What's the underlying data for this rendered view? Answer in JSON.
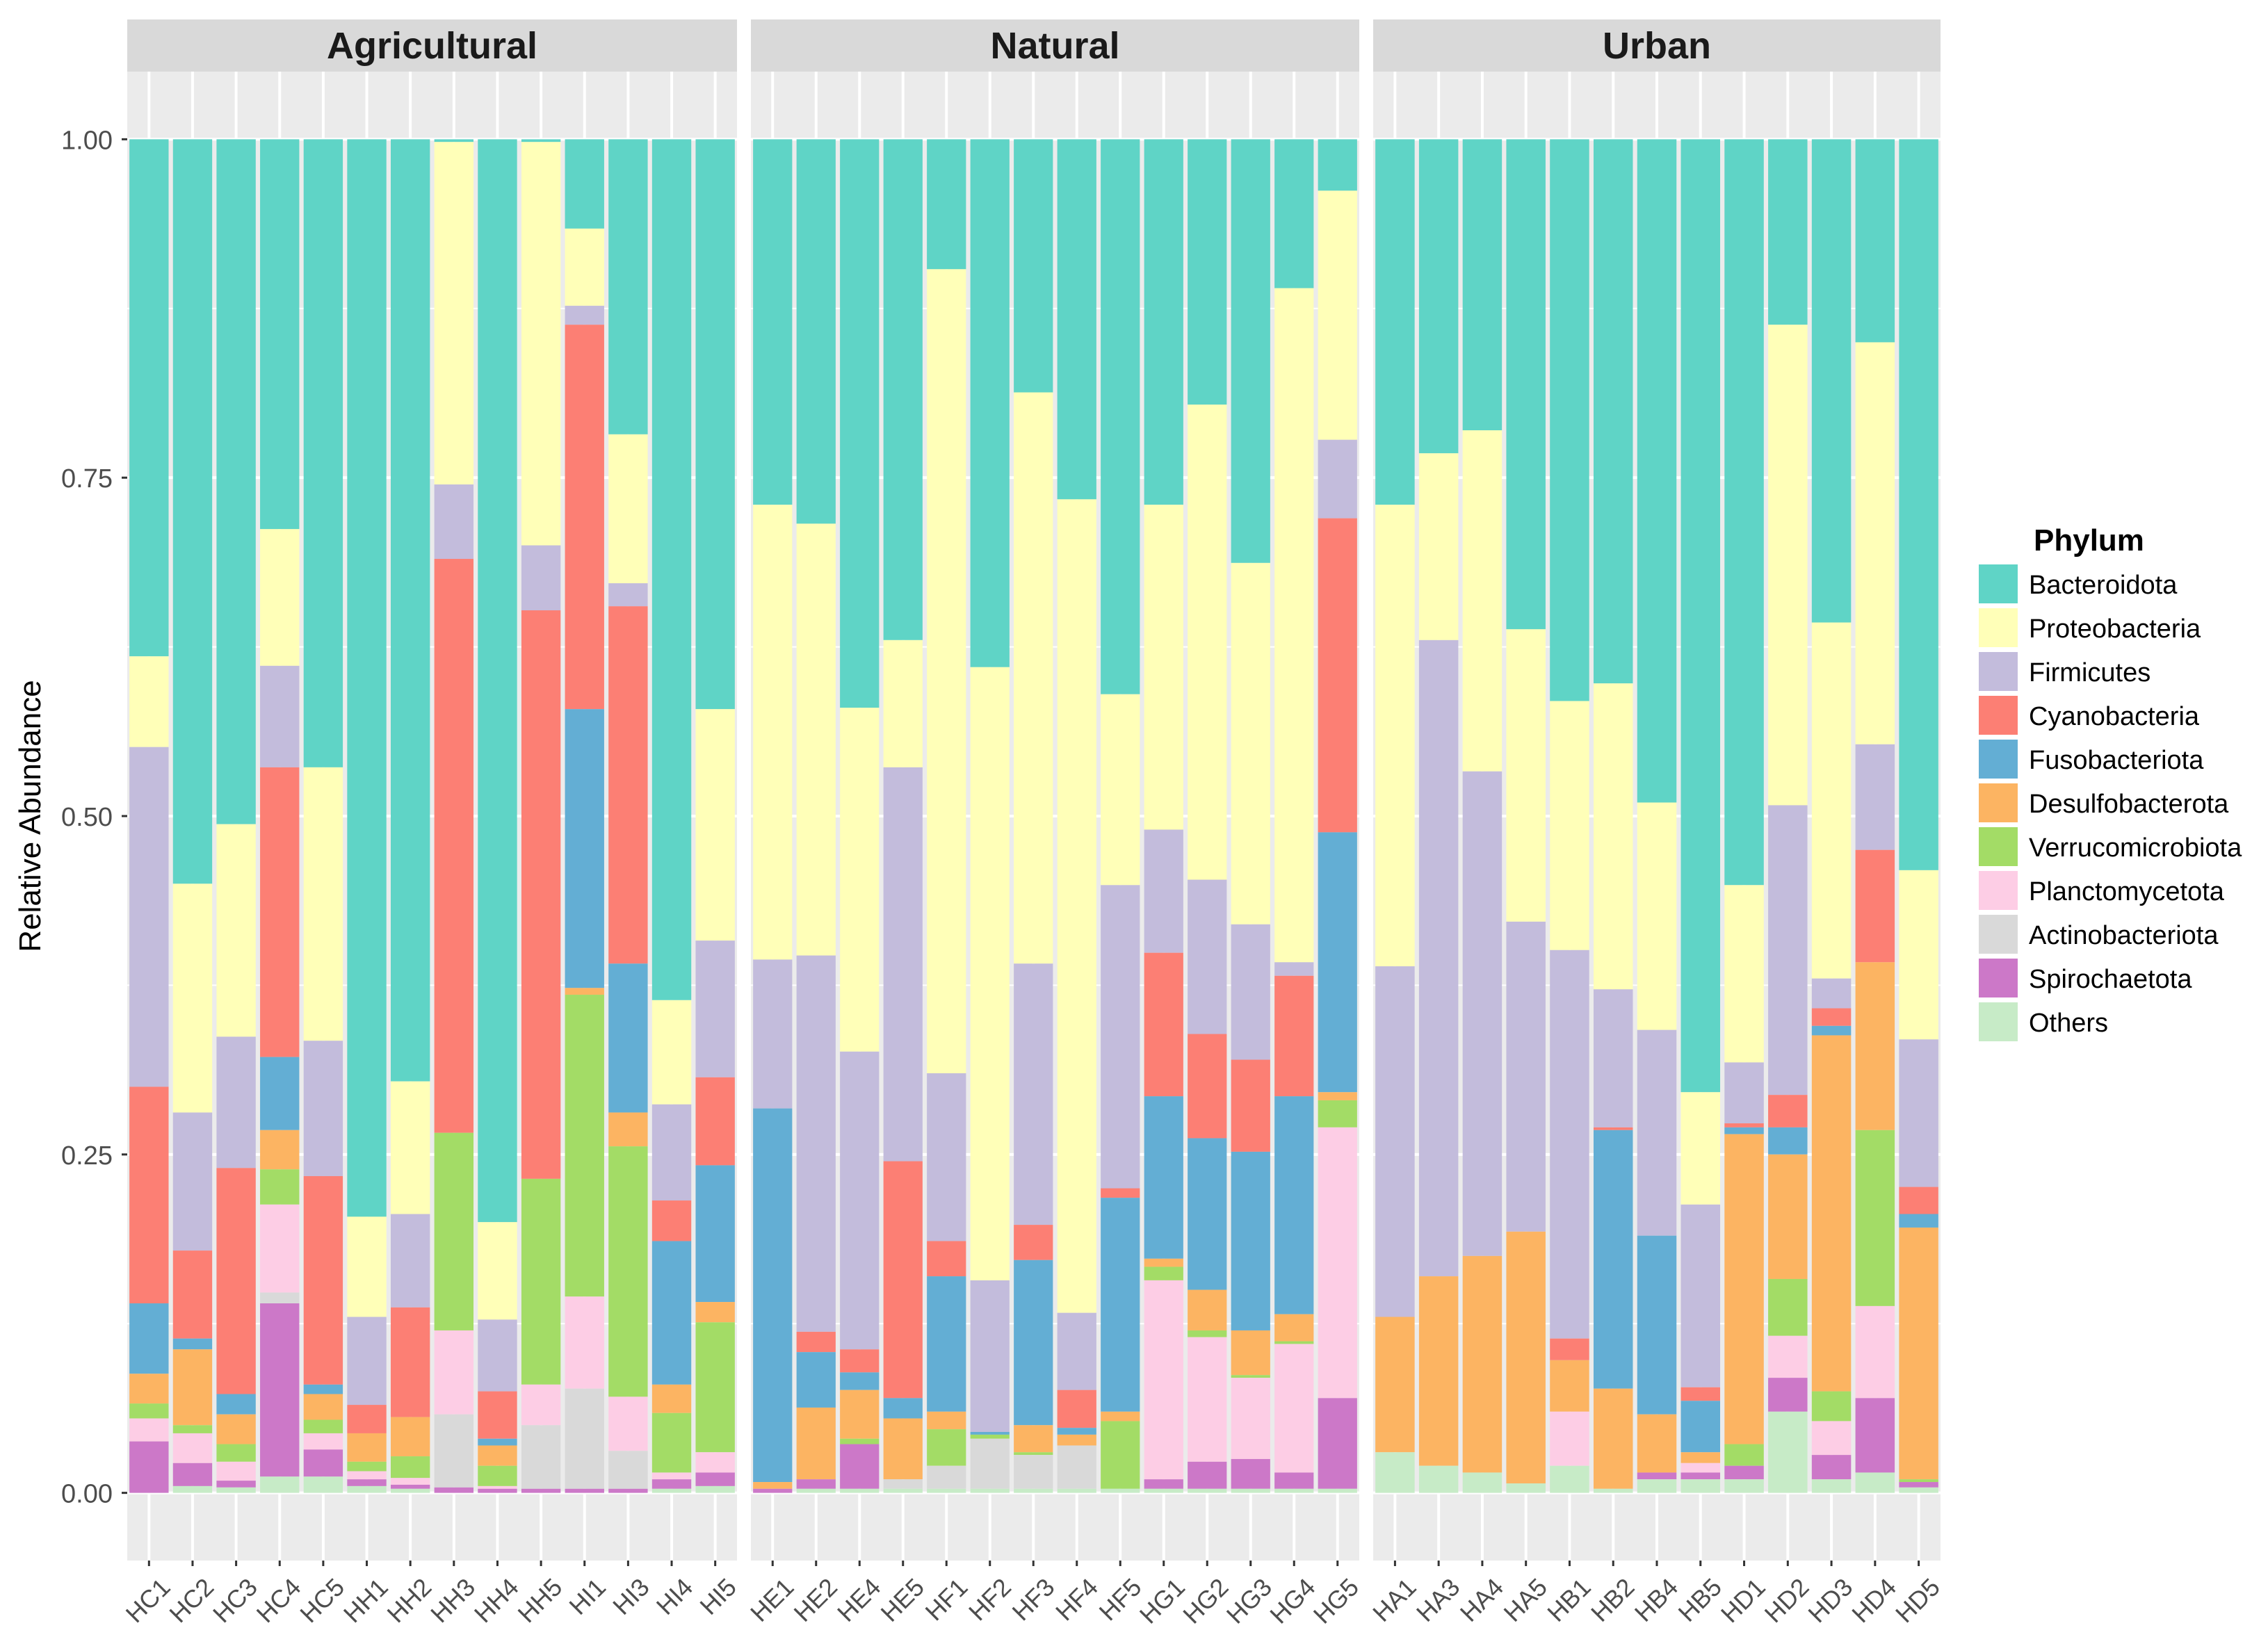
{
  "chart_data": {
    "type": "bar",
    "stacked": true,
    "ylabel": "Relative Abundance",
    "ylim": [
      -0.05,
      1.05
    ],
    "yticks": [
      "0.00",
      "0.25",
      "0.50",
      "0.75",
      "1.00"
    ],
    "legend": {
      "title": "Phylum",
      "position": "right",
      "entries": [
        {
          "name": "Bacteroidota",
          "color": "#5fd4c6"
        },
        {
          "name": "Proteobacteria",
          "color": "#ffffb8"
        },
        {
          "name": "Firmicutes",
          "color": "#c3bcdc"
        },
        {
          "name": "Cyanobacteria",
          "color": "#fc7f74"
        },
        {
          "name": "Fusobacteriota",
          "color": "#63aed4"
        },
        {
          "name": "Desulfobacterota",
          "color": "#fcb462"
        },
        {
          "name": "Verrucomicrobiota",
          "color": "#a3dc66"
        },
        {
          "name": "Planctomycetota",
          "color": "#fdcde5"
        },
        {
          "name": "Actinobacteriota",
          "color": "#d9d9d9"
        },
        {
          "name": "Spirochaetota",
          "color": "#cc78c8"
        },
        {
          "name": "Others",
          "color": "#c7ebc7"
        }
      ]
    },
    "panels": [
      {
        "title": "Agricultural",
        "samples": [
          {
            "label": "HC1",
            "tops": [
              1,
              0.618,
              0.551,
              0.3,
              0.14,
              0.088,
              0.066,
              0.055,
              0.038,
              0.038,
              0
            ]
          },
          {
            "label": "HC2",
            "tops": [
              1,
              0.45,
              0.281,
              0.179,
              0.114,
              0.106,
              0.05,
              0.044,
              0.022,
              0.022,
              0.005
            ]
          },
          {
            "label": "HC3",
            "tops": [
              1,
              0.494,
              0.337,
              0.24,
              0.073,
              0.058,
              0.036,
              0.023,
              0.009,
              0.009,
              0.004
            ]
          },
          {
            "label": "HC4",
            "tops": [
              1,
              0.712,
              0.611,
              0.536,
              0.322,
              0.268,
              0.239,
              0.213,
              0.148,
              0.14,
              0.012
            ]
          },
          {
            "label": "HC5",
            "tops": [
              1,
              0.536,
              0.334,
              0.234,
              0.08,
              0.073,
              0.054,
              0.044,
              0.032,
              0.032,
              0.012
            ]
          },
          {
            "label": "HH1",
            "tops": [
              1,
              0.204,
              0.13,
              0.065,
              0.044,
              0.044,
              0.023,
              0.016,
              0.01,
              0.01,
              0.005
            ]
          },
          {
            "label": "HH2",
            "tops": [
              1,
              0.304,
              0.206,
              0.137,
              0.056,
              0.056,
              0.027,
              0.011,
              0.006,
              0.006,
              0.003
            ]
          },
          {
            "label": "HH3",
            "tops": [
              1,
              0.998,
              0.745,
              0.69,
              0.266,
              0.266,
              0.266,
              0.12,
              0.058,
              0.004,
              0
            ]
          },
          {
            "label": "HH4",
            "tops": [
              1,
              0.2,
              0.128,
              0.075,
              0.04,
              0.035,
              0.02,
              0.005,
              0.003,
              0.003,
              0
            ]
          },
          {
            "label": "HH5",
            "tops": [
              1,
              0.998,
              0.7,
              0.652,
              0.232,
              0.232,
              0.232,
              0.08,
              0.05,
              0.003,
              0
            ]
          },
          {
            "label": "HI1",
            "tops": [
              1,
              0.934,
              0.877,
              0.863,
              0.579,
              0.373,
              0.368,
              0.145,
              0.077,
              0.003,
              0
            ]
          },
          {
            "label": "HI3",
            "tops": [
              1,
              0.782,
              0.672,
              0.655,
              0.391,
              0.281,
              0.256,
              0.071,
              0.031,
              0.003,
              0
            ]
          },
          {
            "label": "HI4",
            "tops": [
              1,
              0.364,
              0.287,
              0.216,
              0.186,
              0.08,
              0.059,
              0.015,
              0.01,
              0.01,
              0.003
            ]
          },
          {
            "label": "HI5",
            "tops": [
              1,
              0.579,
              0.408,
              0.307,
              0.242,
              0.141,
              0.126,
              0.03,
              0.015,
              0.015,
              0.005
            ]
          }
        ]
      },
      {
        "title": "Natural",
        "samples": [
          {
            "label": "HE1",
            "tops": [
              1,
              0.73,
              0.394,
              0.284,
              0.284,
              0.008,
              0.003,
              0.003,
              0.003,
              0.003,
              0
            ]
          },
          {
            "label": "HE2",
            "tops": [
              1,
              0.716,
              0.397,
              0.119,
              0.104,
              0.063,
              0.01,
              0.01,
              0.01,
              0.01,
              0.003
            ]
          },
          {
            "label": "HE4",
            "tops": [
              1,
              0.58,
              0.326,
              0.106,
              0.089,
              0.076,
              0.04,
              0.036,
              0.036,
              0.036,
              0.003
            ]
          },
          {
            "label": "HE5",
            "tops": [
              1,
              0.63,
              0.536,
              0.245,
              0.07,
              0.055,
              0.01,
              0.01,
              0.01,
              0.003,
              0.003
            ]
          },
          {
            "label": "HF1",
            "tops": [
              1,
              0.904,
              0.31,
              0.186,
              0.16,
              0.06,
              0.047,
              0.02,
              0.02,
              0.003,
              0.003
            ]
          },
          {
            "label": "HF2",
            "tops": [
              1,
              0.61,
              0.157,
              0.045,
              0.045,
              0.043,
              0.043,
              0.04,
              0.04,
              0.003,
              0.003
            ]
          },
          {
            "label": "HF3",
            "tops": [
              1,
              0.813,
              0.391,
              0.198,
              0.172,
              0.05,
              0.03,
              0.028,
              0.028,
              0.003,
              0.003
            ]
          },
          {
            "label": "HF4",
            "tops": [
              1,
              0.734,
              0.133,
              0.076,
              0.048,
              0.043,
              0.035,
              0.035,
              0.035,
              0.003,
              0.003
            ]
          },
          {
            "label": "HF5",
            "tops": [
              1,
              0.59,
              0.449,
              0.225,
              0.218,
              0.06,
              0.053,
              0.003,
              0.003,
              0.003,
              0.003
            ]
          },
          {
            "label": "HG1",
            "tops": [
              1,
              0.73,
              0.49,
              0.399,
              0.293,
              0.173,
              0.167,
              0.157,
              0.01,
              0.01,
              0.003
            ]
          },
          {
            "label": "HG2",
            "tops": [
              1,
              0.804,
              0.453,
              0.339,
              0.262,
              0.15,
              0.12,
              0.115,
              0.023,
              0.023,
              0.003
            ]
          },
          {
            "label": "HG3",
            "tops": [
              1,
              0.687,
              0.42,
              0.32,
              0.252,
              0.12,
              0.087,
              0.085,
              0.025,
              0.025,
              0.003
            ]
          },
          {
            "label": "HG4",
            "tops": [
              1,
              0.89,
              0.392,
              0.382,
              0.293,
              0.132,
              0.112,
              0.11,
              0.015,
              0.015,
              0.003
            ]
          },
          {
            "label": "HG5",
            "tops": [
              1,
              0.962,
              0.778,
              0.72,
              0.488,
              0.296,
              0.29,
              0.27,
              0.07,
              0.07,
              0.003
            ]
          }
        ]
      },
      {
        "title": "Urban",
        "samples": [
          {
            "label": "HA1",
            "tops": [
              1,
              0.73,
              0.389,
              0.13,
              0.13,
              0.13,
              0.03,
              0.03,
              0.03,
              0.03,
              0.03
            ]
          },
          {
            "label": "HA3",
            "tops": [
              1,
              0.768,
              0.63,
              0.16,
              0.16,
              0.16,
              0.02,
              0.02,
              0.02,
              0.02,
              0.02
            ]
          },
          {
            "label": "HA4",
            "tops": [
              1,
              0.785,
              0.533,
              0.175,
              0.175,
              0.175,
              0.015,
              0.015,
              0.015,
              0.015,
              0.015
            ]
          },
          {
            "label": "HA5",
            "tops": [
              1,
              0.638,
              0.422,
              0.193,
              0.193,
              0.193,
              0.007,
              0.007,
              0.007,
              0.007,
              0.007
            ]
          },
          {
            "label": "HB1",
            "tops": [
              1,
              0.585,
              0.401,
              0.114,
              0.098,
              0.098,
              0.06,
              0.06,
              0.02,
              0.02,
              0.02
            ]
          },
          {
            "label": "HB2",
            "tops": [
              1,
              0.598,
              0.372,
              0.27,
              0.268,
              0.077,
              0.003,
              0.003,
              0.003,
              0.003,
              0.003
            ]
          },
          {
            "label": "HB4",
            "tops": [
              1,
              0.51,
              0.342,
              0.19,
              0.19,
              0.058,
              0.015,
              0.015,
              0.015,
              0.015,
              0.01
            ]
          },
          {
            "label": "HB5",
            "tops": [
              1,
              0.296,
              0.213,
              0.078,
              0.068,
              0.03,
              0.022,
              0.022,
              0.015,
              0.015,
              0.01
            ]
          },
          {
            "label": "HD1",
            "tops": [
              1,
              0.449,
              0.318,
              0.273,
              0.27,
              0.265,
              0.036,
              0.02,
              0.02,
              0.02,
              0.01
            ]
          },
          {
            "label": "HD2",
            "tops": [
              1,
              0.863,
              0.508,
              0.294,
              0.27,
              0.25,
              0.158,
              0.116,
              0.085,
              0.085,
              0.06
            ]
          },
          {
            "label": "HD3",
            "tops": [
              1,
              0.643,
              0.38,
              0.358,
              0.345,
              0.338,
              0.075,
              0.053,
              0.028,
              0.028,
              0.01
            ]
          },
          {
            "label": "HD4",
            "tops": [
              1,
              0.85,
              0.553,
              0.475,
              0.392,
              0.392,
              0.268,
              0.138,
              0.07,
              0.07,
              0.015
            ]
          },
          {
            "label": "HD5",
            "tops": [
              1,
              0.46,
              0.335,
              0.226,
              0.206,
              0.196,
              0.01,
              0.008,
              0.008,
              0.008,
              0.004
            ]
          }
        ]
      }
    ]
  }
}
